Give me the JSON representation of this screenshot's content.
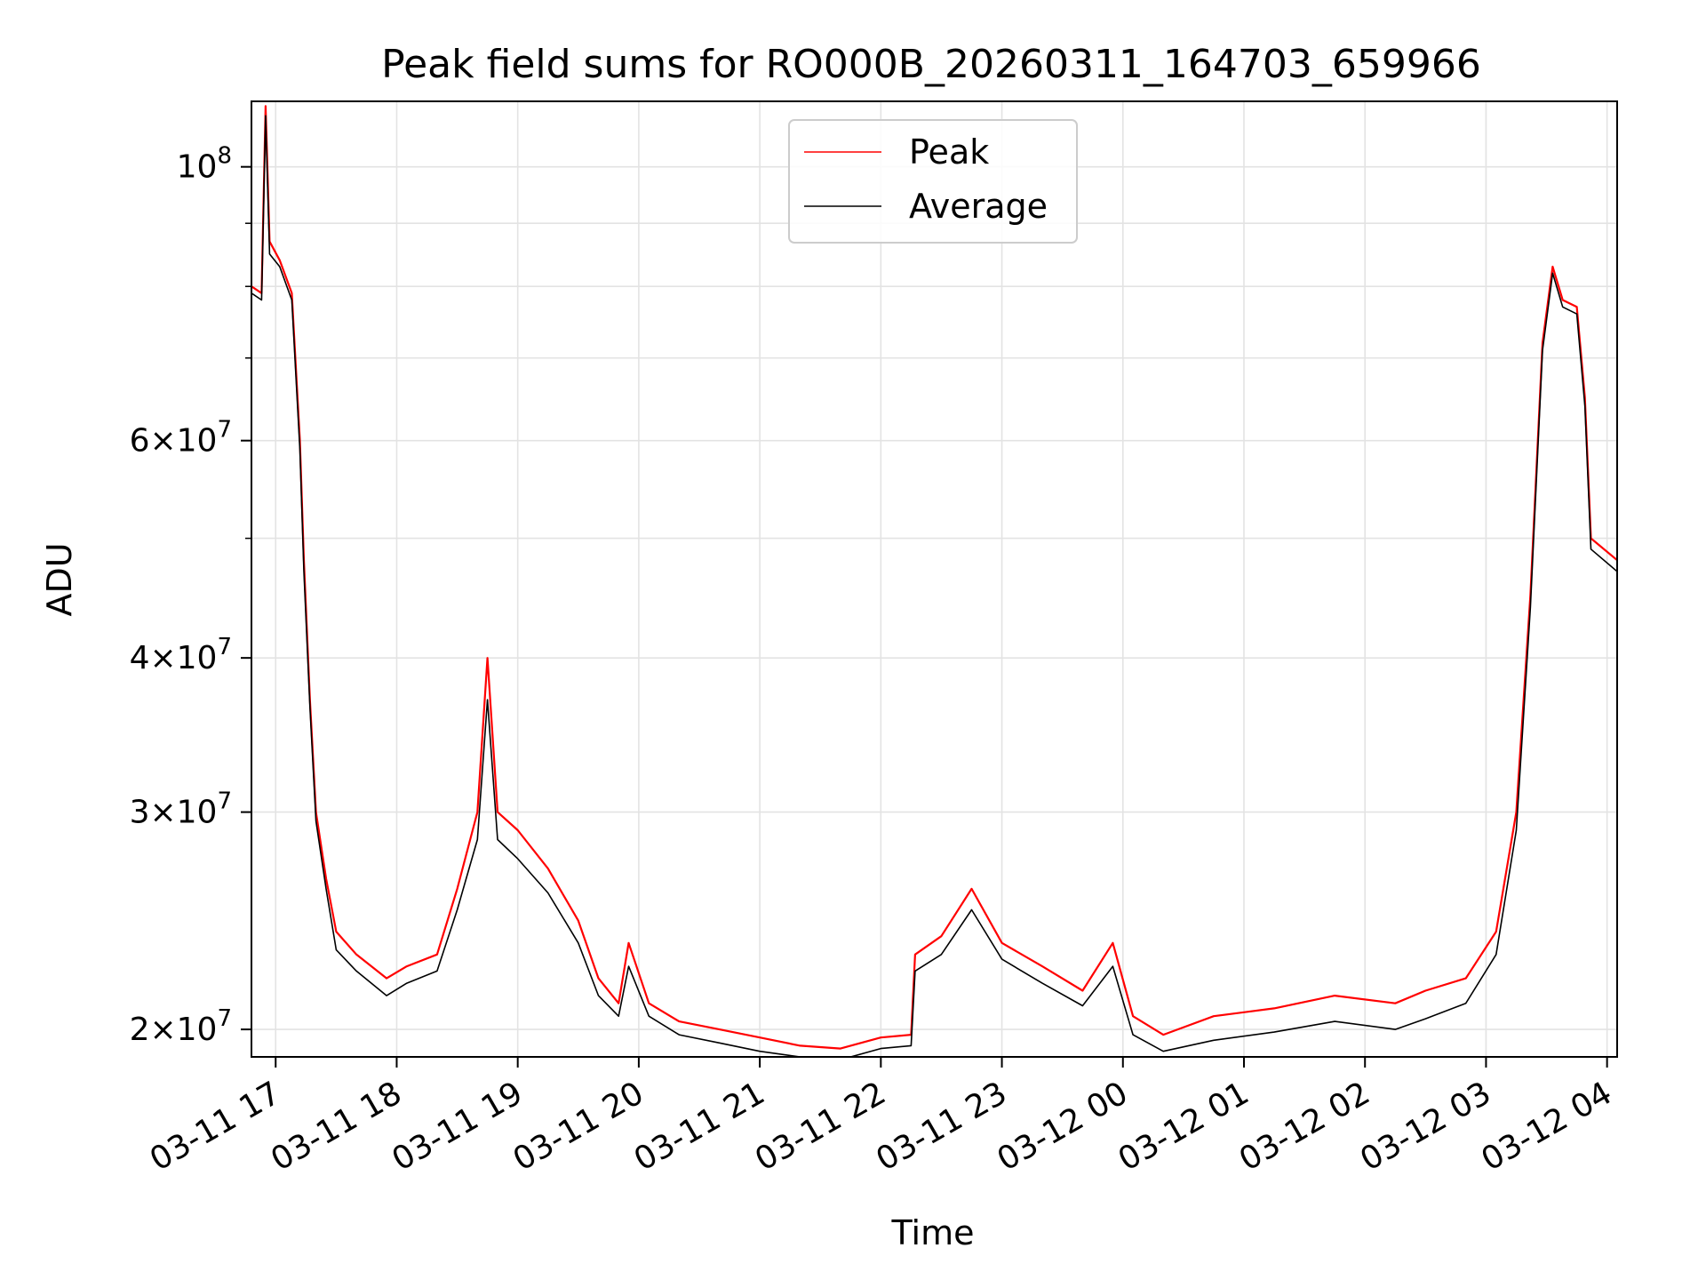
{
  "chart_data": {
    "type": "line",
    "title": "Peak field sums for RO000B_20260311_164703_659966",
    "xlabel": "Time",
    "ylabel": "ADU",
    "yscale": "log",
    "ylim": [
      19000000,
      113000000
    ],
    "xlim": [
      "2026-03-11 16:48",
      "2026-03-12 04:05"
    ],
    "grid": true,
    "legend_position": "top-center",
    "x_ticks": [
      "03-11 17",
      "03-11 18",
      "03-11 19",
      "03-11 20",
      "03-11 21",
      "03-11 22",
      "03-11 23",
      "03-12 00",
      "03-12 01",
      "03-12 02",
      "03-12 03",
      "03-12 04"
    ],
    "x_tick_times": [
      "2026-03-11 17:00",
      "2026-03-11 18:00",
      "2026-03-11 19:00",
      "2026-03-11 20:00",
      "2026-03-11 21:00",
      "2026-03-11 22:00",
      "2026-03-11 23:00",
      "2026-03-12 00:00",
      "2026-03-12 01:00",
      "2026-03-12 02:00",
      "2026-03-12 03:00",
      "2026-03-12 04:00"
    ],
    "y_ticks_major": [
      {
        "value": 20000000,
        "mantissa": "2",
        "exp": "7"
      },
      {
        "value": 30000000,
        "mantissa": "3",
        "exp": "7"
      },
      {
        "value": 40000000,
        "mantissa": "4",
        "exp": "7"
      },
      {
        "value": 60000000,
        "mantissa": "6",
        "exp": "7"
      },
      {
        "value": 100000000,
        "mantissa": "",
        "exp": "8"
      }
    ],
    "y_ticks_minor": [
      50000000,
      70000000,
      80000000,
      90000000
    ],
    "series": [
      {
        "name": "Peak",
        "color": "#ff0000",
        "points": [
          [
            "2026-03-11 16:48",
            80000000
          ],
          [
            "2026-03-11 16:53",
            79000000
          ],
          [
            "2026-03-11 16:55",
            112000000
          ],
          [
            "2026-03-11 16:57",
            87000000
          ],
          [
            "2026-03-11 17:02",
            84000000
          ],
          [
            "2026-03-11 17:08",
            79000000
          ],
          [
            "2026-03-11 17:12",
            60000000
          ],
          [
            "2026-03-11 17:14",
            48000000
          ],
          [
            "2026-03-11 17:17",
            37000000
          ],
          [
            "2026-03-11 17:20",
            30000000
          ],
          [
            "2026-03-11 17:25",
            26500000
          ],
          [
            "2026-03-11 17:30",
            24000000
          ],
          [
            "2026-03-11 17:40",
            23000000
          ],
          [
            "2026-03-11 17:55",
            22000000
          ],
          [
            "2026-03-11 18:05",
            22500000
          ],
          [
            "2026-03-11 18:20",
            23000000
          ],
          [
            "2026-03-11 18:30",
            26000000
          ],
          [
            "2026-03-11 18:40",
            30000000
          ],
          [
            "2026-03-11 18:45",
            40000000
          ],
          [
            "2026-03-11 18:50",
            30000000
          ],
          [
            "2026-03-11 19:00",
            29000000
          ],
          [
            "2026-03-11 19:15",
            27000000
          ],
          [
            "2026-03-11 19:30",
            24500000
          ],
          [
            "2026-03-11 19:40",
            22000000
          ],
          [
            "2026-03-11 19:50",
            21000000
          ],
          [
            "2026-03-11 19:55",
            23500000
          ],
          [
            "2026-03-11 20:05",
            21000000
          ],
          [
            "2026-03-11 20:20",
            20300000
          ],
          [
            "2026-03-11 20:40",
            20000000
          ],
          [
            "2026-03-11 21:00",
            19700000
          ],
          [
            "2026-03-11 21:20",
            19400000
          ],
          [
            "2026-03-11 21:40",
            19300000
          ],
          [
            "2026-03-11 22:00",
            19700000
          ],
          [
            "2026-03-11 22:15",
            19800000
          ],
          [
            "2026-03-11 22:17",
            23000000
          ],
          [
            "2026-03-11 22:30",
            23800000
          ],
          [
            "2026-03-11 22:45",
            26000000
          ],
          [
            "2026-03-11 23:00",
            23500000
          ],
          [
            "2026-03-11 23:20",
            22500000
          ],
          [
            "2026-03-11 23:40",
            21500000
          ],
          [
            "2026-03-11 23:55",
            23500000
          ],
          [
            "2026-03-12 00:05",
            20500000
          ],
          [
            "2026-03-12 00:20",
            19800000
          ],
          [
            "2026-03-12 00:45",
            20500000
          ],
          [
            "2026-03-12 01:15",
            20800000
          ],
          [
            "2026-03-12 01:45",
            21300000
          ],
          [
            "2026-03-12 02:15",
            21000000
          ],
          [
            "2026-03-12 02:30",
            21500000
          ],
          [
            "2026-03-12 02:50",
            22000000
          ],
          [
            "2026-03-12 03:05",
            24000000
          ],
          [
            "2026-03-12 03:15",
            30000000
          ],
          [
            "2026-03-12 03:22",
            45000000
          ],
          [
            "2026-03-12 03:28",
            72000000
          ],
          [
            "2026-03-12 03:33",
            83000000
          ],
          [
            "2026-03-12 03:38",
            78000000
          ],
          [
            "2026-03-12 03:45",
            77000000
          ],
          [
            "2026-03-12 03:49",
            65000000
          ],
          [
            "2026-03-12 03:52",
            50000000
          ],
          [
            "2026-03-12 04:05",
            48000000
          ]
        ]
      },
      {
        "name": "Average",
        "color": "#000000",
        "points": [
          [
            "2026-03-11 16:48",
            79000000
          ],
          [
            "2026-03-11 16:53",
            78000000
          ],
          [
            "2026-03-11 16:55",
            110000000
          ],
          [
            "2026-03-11 16:57",
            85000000
          ],
          [
            "2026-03-11 17:02",
            83000000
          ],
          [
            "2026-03-11 17:08",
            78000000
          ],
          [
            "2026-03-11 17:12",
            59000000
          ],
          [
            "2026-03-11 17:14",
            47000000
          ],
          [
            "2026-03-11 17:17",
            36500000
          ],
          [
            "2026-03-11 17:20",
            29500000
          ],
          [
            "2026-03-11 17:25",
            26000000
          ],
          [
            "2026-03-11 17:30",
            23200000
          ],
          [
            "2026-03-11 17:40",
            22300000
          ],
          [
            "2026-03-11 17:55",
            21300000
          ],
          [
            "2026-03-11 18:05",
            21800000
          ],
          [
            "2026-03-11 18:20",
            22300000
          ],
          [
            "2026-03-11 18:30",
            25000000
          ],
          [
            "2026-03-11 18:40",
            28500000
          ],
          [
            "2026-03-11 18:45",
            37000000
          ],
          [
            "2026-03-11 18:50",
            28500000
          ],
          [
            "2026-03-11 19:00",
            27500000
          ],
          [
            "2026-03-11 19:15",
            25800000
          ],
          [
            "2026-03-11 19:30",
            23500000
          ],
          [
            "2026-03-11 19:40",
            21300000
          ],
          [
            "2026-03-11 19:50",
            20500000
          ],
          [
            "2026-03-11 19:55",
            22500000
          ],
          [
            "2026-03-11 20:05",
            20500000
          ],
          [
            "2026-03-11 20:20",
            19800000
          ],
          [
            "2026-03-11 20:40",
            19500000
          ],
          [
            "2026-03-11 21:00",
            19200000
          ],
          [
            "2026-03-11 21:20",
            19000000
          ],
          [
            "2026-03-11 21:40",
            18900000
          ],
          [
            "2026-03-11 22:00",
            19300000
          ],
          [
            "2026-03-11 22:15",
            19400000
          ],
          [
            "2026-03-11 22:17",
            22300000
          ],
          [
            "2026-03-11 22:30",
            23000000
          ],
          [
            "2026-03-11 22:45",
            25000000
          ],
          [
            "2026-03-11 23:00",
            22800000
          ],
          [
            "2026-03-11 23:20",
            21800000
          ],
          [
            "2026-03-11 23:40",
            20900000
          ],
          [
            "2026-03-11 23:55",
            22500000
          ],
          [
            "2026-03-12 00:05",
            19800000
          ],
          [
            "2026-03-12 00:20",
            19200000
          ],
          [
            "2026-03-12 00:45",
            19600000
          ],
          [
            "2026-03-12 01:15",
            19900000
          ],
          [
            "2026-03-12 01:45",
            20300000
          ],
          [
            "2026-03-12 02:15",
            20000000
          ],
          [
            "2026-03-12 02:30",
            20400000
          ],
          [
            "2026-03-12 02:50",
            21000000
          ],
          [
            "2026-03-12 03:05",
            23000000
          ],
          [
            "2026-03-12 03:15",
            29000000
          ],
          [
            "2026-03-12 03:22",
            44000000
          ],
          [
            "2026-03-12 03:28",
            71000000
          ],
          [
            "2026-03-12 03:33",
            82000000
          ],
          [
            "2026-03-12 03:38",
            77000000
          ],
          [
            "2026-03-12 03:45",
            76000000
          ],
          [
            "2026-03-12 03:49",
            64000000
          ],
          [
            "2026-03-12 03:52",
            49000000
          ],
          [
            "2026-03-12 04:05",
            47000000
          ]
        ]
      }
    ]
  }
}
